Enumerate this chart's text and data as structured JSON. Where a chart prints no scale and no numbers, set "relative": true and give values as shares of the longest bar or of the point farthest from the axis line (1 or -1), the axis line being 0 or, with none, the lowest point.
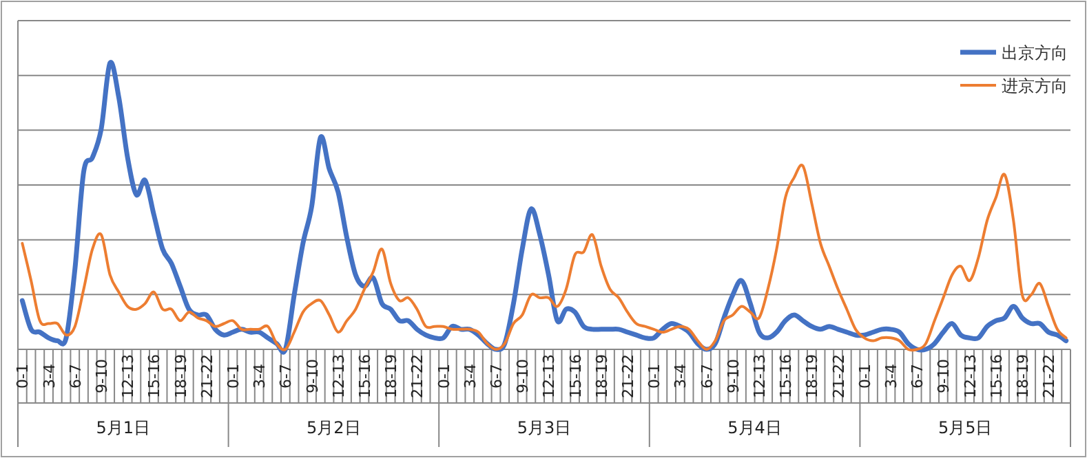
{
  "chart_data": {
    "type": "line",
    "relative": true,
    "grid": true,
    "legend": "top right",
    "categories": [
      "0-1",
      null,
      null,
      "3-4",
      null,
      null,
      "6-7",
      null,
      null,
      "9-10",
      null,
      null,
      "12-13",
      null,
      null,
      "15-16",
      null,
      null,
      "18-19",
      null,
      null,
      "21-22",
      null,
      null,
      "0-1",
      null,
      null,
      "3-4",
      null,
      null,
      "6-7",
      null,
      null,
      "9-10",
      null,
      null,
      "12-13",
      null,
      null,
      "15-16",
      null,
      null,
      "18-19",
      null,
      null,
      "21-22",
      null,
      null,
      "0-1",
      null,
      null,
      "3-4",
      null,
      null,
      "6-7",
      null,
      null,
      "9-10",
      null,
      null,
      "12-13",
      null,
      null,
      "15-16",
      null,
      null,
      "18-19",
      null,
      null,
      "21-22",
      null,
      null,
      "0-1",
      null,
      null,
      "3-4",
      null,
      null,
      "6-7",
      null,
      null,
      "9-10",
      null,
      null,
      "12-13",
      null,
      null,
      "15-16",
      null,
      null,
      "18-19",
      null,
      null,
      "21-22",
      null,
      null,
      "0-1",
      null,
      null,
      "3-4",
      null,
      null,
      "6-7",
      null,
      null,
      "9-10",
      null,
      null,
      "12-13",
      null,
      null,
      "15-16",
      null,
      null,
      "18-19",
      null,
      null,
      "21-22",
      null,
      null
    ],
    "annotations": [
      "5月1日",
      "5月2日",
      "5月3日",
      "5月4日",
      "5月5日"
    ],
    "series": [
      {
        "name": "出京方向",
        "color": "#4472c4",
        "values": [
          0.17,
          0.07,
          0.06,
          0.04,
          0.03,
          0.04,
          0.28,
          0.62,
          0.67,
          0.77,
          1.0,
          0.88,
          0.67,
          0.54,
          0.59,
          0.47,
          0.35,
          0.3,
          0.22,
          0.14,
          0.12,
          0.12,
          0.07,
          0.05,
          0.06,
          0.07,
          0.06,
          0.06,
          0.04,
          0.02,
          0,
          0.19,
          0.37,
          0.5,
          0.74,
          0.63,
          0.55,
          0.39,
          0.26,
          0.22,
          0.25,
          0.16,
          0.14,
          0.1,
          0.1,
          0.07,
          0.05,
          0.04,
          0.04,
          0.08,
          0.07,
          0.07,
          0.05,
          0.02,
          0,
          0.02,
          0.16,
          0.35,
          0.49,
          0.4,
          0.26,
          0.1,
          0.14,
          0.13,
          0.08,
          0.07,
          0.07,
          0.07,
          0.07,
          0.06,
          0.05,
          0.04,
          0.04,
          0.07,
          0.09,
          0.08,
          0.06,
          0.02,
          0,
          0.02,
          0.11,
          0.19,
          0.24,
          0.16,
          0.06,
          0.04,
          0.06,
          0.1,
          0.12,
          0.1,
          0.08,
          0.07,
          0.08,
          0.07,
          0.06,
          0.05,
          0.05,
          0.06,
          0.07,
          0.07,
          0.06,
          0.02,
          0,
          0,
          0.02,
          0.06,
          0.09,
          0.05,
          0.04,
          0.04,
          0.08,
          0.1,
          0.11,
          0.15,
          0.11,
          0.09,
          0.09,
          0.06,
          0.05,
          0.03
        ]
      },
      {
        "name": "进京方向",
        "color": "#ed7d31",
        "values": [
          0.37,
          0.24,
          0.1,
          0.09,
          0.09,
          0.05,
          0.08,
          0.21,
          0.35,
          0.4,
          0.26,
          0.2,
          0.15,
          0.14,
          0.16,
          0.2,
          0.14,
          0.14,
          0.1,
          0.13,
          0.11,
          0.1,
          0.08,
          0.09,
          0.1,
          0.07,
          0.07,
          0.07,
          0.08,
          0.02,
          0,
          0.06,
          0.13,
          0.16,
          0.17,
          0.12,
          0.06,
          0.1,
          0.14,
          0.21,
          0.27,
          0.35,
          0.23,
          0.17,
          0.18,
          0.14,
          0.08,
          0.08,
          0.08,
          0.07,
          0.07,
          0.07,
          0.06,
          0.02,
          0,
          0.02,
          0.09,
          0.12,
          0.19,
          0.18,
          0.18,
          0.15,
          0.21,
          0.33,
          0.34,
          0.4,
          0.29,
          0.21,
          0.18,
          0.13,
          0.09,
          0.08,
          0.07,
          0.06,
          0.07,
          0.08,
          0.07,
          0.03,
          0,
          0.03,
          0.1,
          0.12,
          0.15,
          0.13,
          0.11,
          0.21,
          0.35,
          0.53,
          0.6,
          0.64,
          0.51,
          0.37,
          0.29,
          0.21,
          0.14,
          0.07,
          0.04,
          0.03,
          0.04,
          0.04,
          0.03,
          0,
          0,
          0.02,
          0.1,
          0.18,
          0.26,
          0.29,
          0.24,
          0.32,
          0.45,
          0.53,
          0.61,
          0.45,
          0.19,
          0.19,
          0.23,
          0.15,
          0.07,
          0.04
        ]
      }
    ]
  }
}
